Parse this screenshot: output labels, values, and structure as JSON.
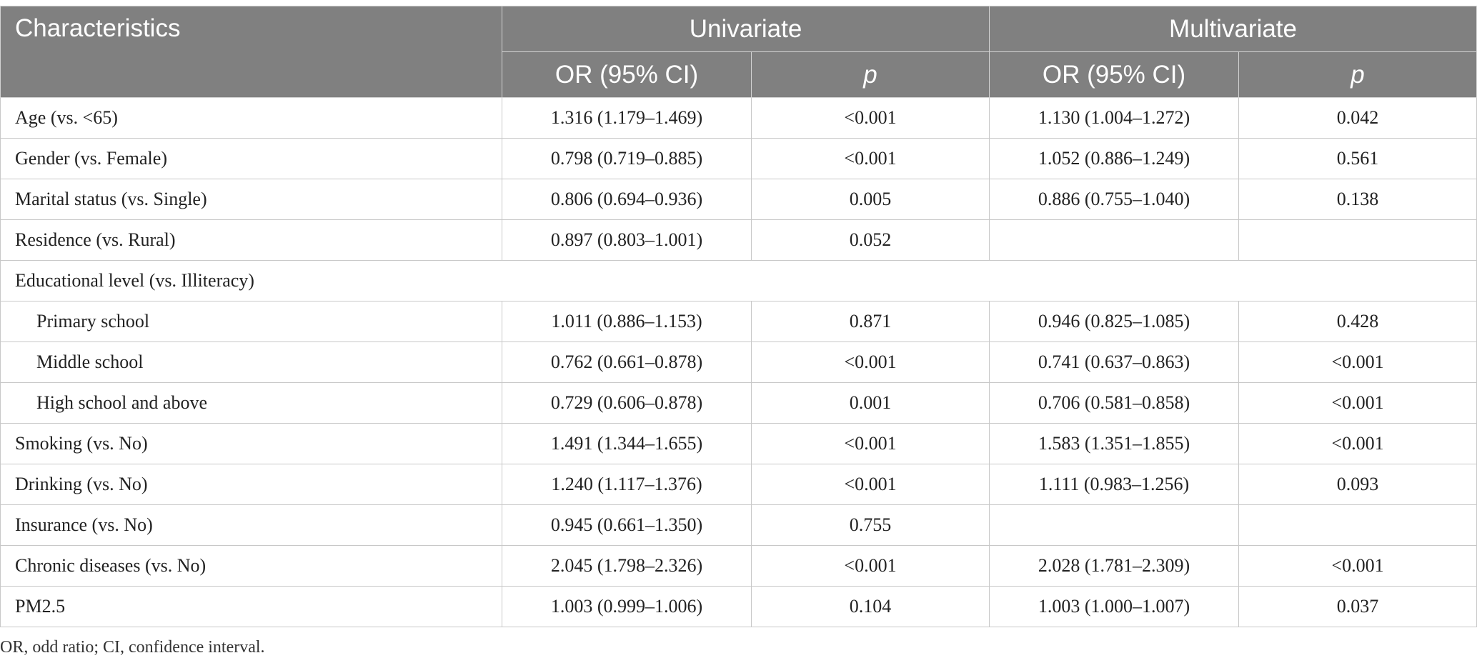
{
  "header": {
    "characteristics": "Characteristics",
    "univariate": "Univariate",
    "multivariate": "Multivariate",
    "or_ci": "OR (95% CI)",
    "p": "p"
  },
  "rows": [
    {
      "label": "Age (vs. <65)",
      "indent": false,
      "uni_or": "1.316 (1.179–1.469)",
      "uni_p": "<0.001",
      "multi_or": "1.130 (1.004–1.272)",
      "multi_p": "0.042"
    },
    {
      "label": "Gender (vs. Female)",
      "indent": false,
      "uni_or": "0.798 (0.719–0.885)",
      "uni_p": "<0.001",
      "multi_or": "1.052 (0.886–1.249)",
      "multi_p": "0.561"
    },
    {
      "label": "Marital status (vs. Single)",
      "indent": false,
      "uni_or": "0.806 (0.694–0.936)",
      "uni_p": "0.005",
      "multi_or": "0.886 (0.755–1.040)",
      "multi_p": "0.138"
    },
    {
      "label": "Residence (vs. Rural)",
      "indent": false,
      "uni_or": "0.897 (0.803–1.001)",
      "uni_p": "0.052",
      "multi_or": "",
      "multi_p": ""
    },
    {
      "label": "Educational level (vs. Illiteracy)",
      "section": true
    },
    {
      "label": "Primary school",
      "indent": true,
      "uni_or": "1.011 (0.886–1.153)",
      "uni_p": "0.871",
      "multi_or": "0.946 (0.825–1.085)",
      "multi_p": "0.428"
    },
    {
      "label": "Middle school",
      "indent": true,
      "uni_or": "0.762 (0.661–0.878)",
      "uni_p": "<0.001",
      "multi_or": "0.741 (0.637–0.863)",
      "multi_p": "<0.001"
    },
    {
      "label": "High school and above",
      "indent": true,
      "uni_or": "0.729 (0.606–0.878)",
      "uni_p": "0.001",
      "multi_or": "0.706 (0.581–0.858)",
      "multi_p": "<0.001"
    },
    {
      "label": "Smoking (vs. No)",
      "indent": false,
      "uni_or": "1.491 (1.344–1.655)",
      "uni_p": "<0.001",
      "multi_or": "1.583 (1.351–1.855)",
      "multi_p": "<0.001"
    },
    {
      "label": "Drinking (vs. No)",
      "indent": false,
      "uni_or": "1.240 (1.117–1.376)",
      "uni_p": "<0.001",
      "multi_or": "1.111 (0.983–1.256)",
      "multi_p": "0.093"
    },
    {
      "label": "Insurance (vs. No)",
      "indent": false,
      "uni_or": "0.945 (0.661–1.350)",
      "uni_p": "0.755",
      "multi_or": "",
      "multi_p": ""
    },
    {
      "label": "Chronic diseases (vs. No)",
      "indent": false,
      "uni_or": "2.045 (1.798–2.326)",
      "uni_p": "<0.001",
      "multi_or": "2.028 (1.781–2.309)",
      "multi_p": "<0.001"
    },
    {
      "label": "PM2.5",
      "indent": false,
      "uni_or": "1.003 (0.999–1.006)",
      "uni_p": "0.104",
      "multi_or": "1.003 (1.000–1.007)",
      "multi_p": "0.037"
    }
  ],
  "footnote": "OR, odd ratio; CI, confidence interval.",
  "colors": {
    "header_bg": "#808080",
    "header_text": "#ffffff",
    "border": "#c8c8c8"
  }
}
